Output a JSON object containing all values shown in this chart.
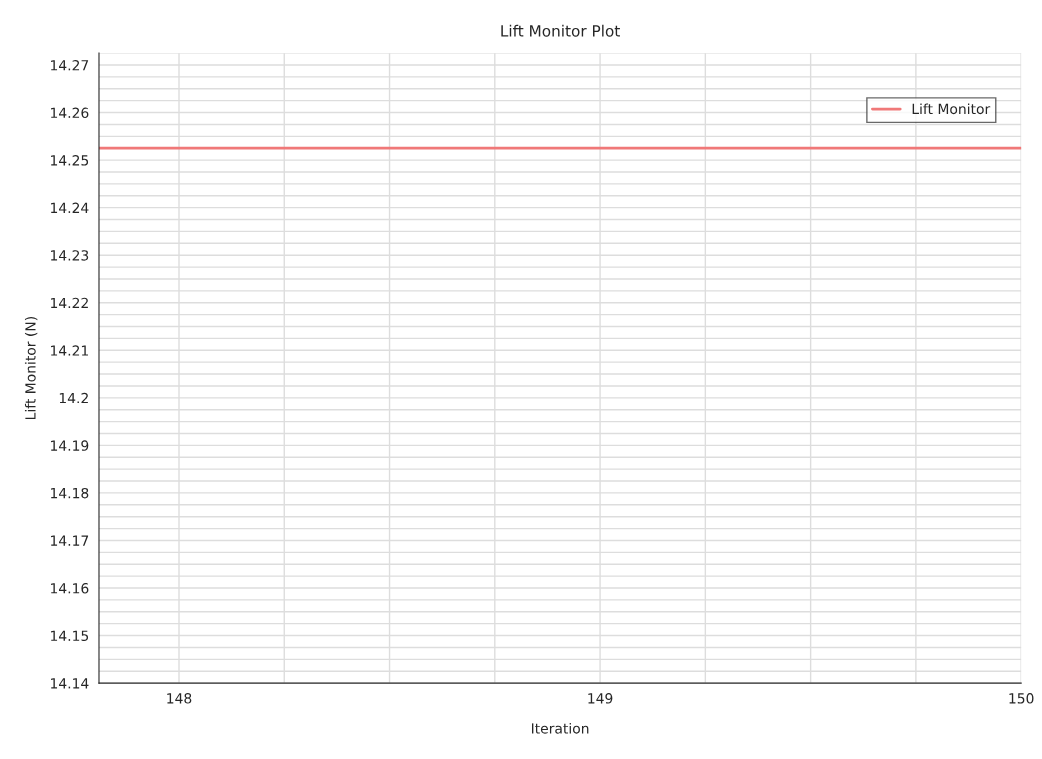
{
  "chart_data": {
    "type": "line",
    "title": "Lift Monitor Plot",
    "xlabel": "Iteration",
    "ylabel": "Lift Monitor (N)",
    "x": [
      147.81,
      150
    ],
    "series": [
      {
        "name": "Lift Monitor",
        "color": "#f07878",
        "values": [
          14.2525,
          14.2525
        ]
      }
    ],
    "xlim": [
      147.81,
      150
    ],
    "xticks": [
      148,
      149,
      150
    ],
    "ylim": [
      14.14,
      14.2725
    ],
    "yticks": [
      14.14,
      14.15,
      14.16,
      14.17,
      14.18,
      14.19,
      {
        "value": 14.2,
        "label": "14.2"
      },
      14.21,
      14.22,
      14.23,
      14.24,
      14.25,
      14.26,
      14.27
    ],
    "grid": true,
    "legend": "top right",
    "marker": "none",
    "line_style": "solid"
  }
}
